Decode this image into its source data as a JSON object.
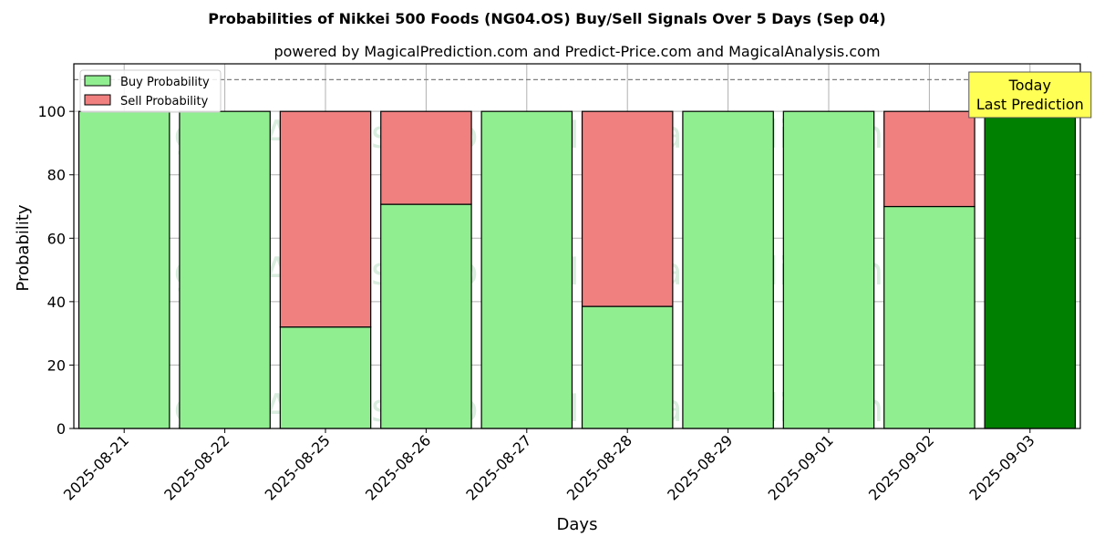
{
  "chart_data": {
    "type": "bar",
    "stacked": true,
    "title": "Probabilities of Nikkei 500 Foods (NG04.OS) Buy/Sell Signals Over 5 Days (Sep 04)",
    "subtitle": "powered by MagicalPrediction.com and Predict-Price.com and MagicalAnalysis.com",
    "xlabel": "Days",
    "ylabel": "Probability",
    "ylim": [
      0,
      115
    ],
    "yticks": [
      0,
      20,
      40,
      60,
      80,
      100
    ],
    "grid": true,
    "legend_position": "top-left",
    "reference_line": 110,
    "categories": [
      "2025-08-21",
      "2025-08-22",
      "2025-08-25",
      "2025-08-26",
      "2025-08-27",
      "2025-08-28",
      "2025-08-29",
      "2025-09-01",
      "2025-09-02",
      "2025-09-03"
    ],
    "series": [
      {
        "name": "Buy Probability",
        "color": "#90ee90",
        "values": [
          100,
          100,
          32,
          70.7,
          100,
          38.5,
          100,
          100,
          70,
          100
        ]
      },
      {
        "name": "Sell Probability",
        "color": "#f08080",
        "values": [
          0,
          0,
          68,
          29.3,
          0,
          61.5,
          0,
          0,
          30,
          0
        ]
      }
    ],
    "highlight_index": 9,
    "highlight_color": "#008000",
    "annotation": {
      "line1": "Today",
      "line2": "Last Prediction",
      "color": "#ffff55"
    },
    "watermarks": [
      "MagicalAnalysis.com",
      "MagicalPrediction.com"
    ]
  }
}
